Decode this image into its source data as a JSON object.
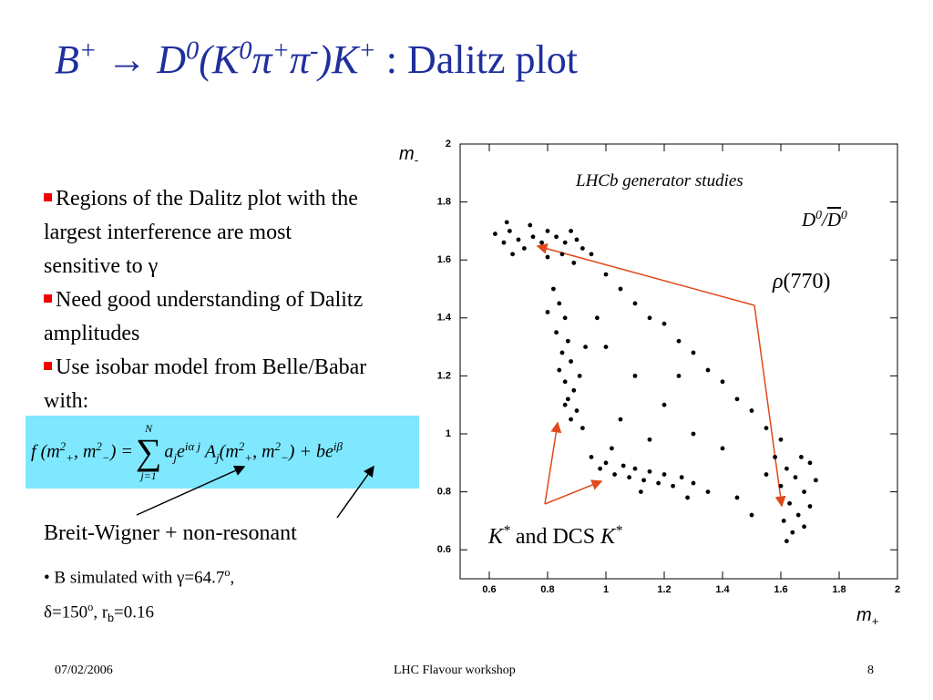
{
  "header": {
    "title": [
      {
        "t": "B"
      },
      {
        "t": "+",
        "v": "sup"
      },
      {
        "t": " → ",
        "s": "b"
      },
      {
        "t": "D"
      },
      {
        "t": "0",
        "v": "sup"
      },
      {
        "t": "(K"
      },
      {
        "t": "0",
        "v": "sup"
      },
      {
        "t": "π"
      },
      {
        "t": "+",
        "v": "sup"
      },
      {
        "t": "π"
      },
      {
        "t": "-",
        "v": "sup"
      },
      {
        "t": ")K"
      },
      {
        "t": "+",
        "v": "sup"
      },
      {
        "t": " : Dalitz plot",
        "s": "rm"
      }
    ]
  },
  "body": {
    "bullets": [
      [
        {
          "t": "Regions of the Dalitz plot with the largest interference are most sensitive to γ"
        }
      ],
      [
        {
          "t": "Need good understanding of Dalitz amplitudes"
        }
      ],
      [
        {
          "t": "Use isobar model from Belle/Babar with:"
        }
      ]
    ],
    "formula": {
      "lhs": [
        {
          "t": "f"
        },
        {
          "t": " (m"
        },
        {
          "t": "2",
          "v": "sup"
        },
        {
          "t": "+",
          "v": "sub"
        },
        {
          "t": ", m"
        },
        {
          "t": "2",
          "v": "sup"
        },
        {
          "t": "−",
          "v": "sub"
        },
        {
          "t": ") = "
        }
      ],
      "sum": {
        "symbol": "∑",
        "upper": "N",
        "lower": "j=1"
      },
      "rhs": [
        {
          "t": "a"
        },
        {
          "t": "j",
          "v": "sub"
        },
        {
          "t": "e"
        },
        {
          "t": "iα j",
          "v": "sup"
        },
        {
          "t": " A"
        },
        {
          "t": "j",
          "v": "sub"
        },
        {
          "t": "(m"
        },
        {
          "t": "2",
          "v": "sup"
        },
        {
          "t": "+",
          "v": "sub"
        },
        {
          "t": ", m"
        },
        {
          "t": "2",
          "v": "sup"
        },
        {
          "t": "−",
          "v": "sub"
        },
        {
          "t": ") + be"
        },
        {
          "t": "iβ",
          "v": "sup"
        }
      ]
    },
    "caption": [
      {
        "t": "Breit-Wigner + non-resonant"
      }
    ],
    "notes": [
      [
        {
          "t": "• B simulated with γ=64.7"
        },
        {
          "t": "o",
          "v": "sup"
        },
        {
          "t": ","
        }
      ],
      [
        {
          "t": "δ=150"
        },
        {
          "t": "o",
          "v": "sup"
        },
        {
          "t": ", r"
        },
        {
          "t": "b",
          "v": "sub",
          "s": "sans"
        },
        {
          "t": "=0.16"
        }
      ]
    ]
  },
  "chart_data": {
    "type": "scatter",
    "color": "#000000",
    "x_label": [
      {
        "t": "m"
      },
      {
        "t": "+",
        "v": "sub"
      }
    ],
    "y_label": [
      {
        "t": "m"
      },
      {
        "t": "-",
        "v": "sub"
      }
    ],
    "annotations": [
      [
        {
          "t": "LHCb generator studies"
        }
      ],
      [
        {
          "t": "D"
        },
        {
          "t": "0",
          "v": "sup"
        },
        {
          "t": "/"
        },
        {
          "t": "D",
          "s": "ov"
        },
        {
          "t": "0",
          "v": "sup"
        }
      ],
      [
        {
          "t": "ρ"
        },
        {
          "t": "(770)",
          "s": "rm"
        }
      ],
      [
        {
          "t": "K"
        },
        {
          "t": "*",
          "v": "sup"
        },
        {
          "t": " and DCS ",
          "s": "rm"
        },
        {
          "t": "K"
        },
        {
          "t": "*",
          "v": "sup"
        }
      ]
    ],
    "xlim": [
      0.5,
      2
    ],
    "ylim": [
      0.5,
      2
    ],
    "xticks": [
      0.6,
      0.8,
      1,
      1.2,
      1.4,
      1.6,
      1.8,
      2
    ],
    "yticks": [
      0.6,
      0.8,
      1,
      1.2,
      1.4,
      1.6,
      1.8,
      2
    ],
    "x": [
      0.62,
      0.65,
      0.67,
      0.7,
      0.72,
      0.68,
      0.75,
      0.78,
      0.8,
      0.83,
      0.86,
      0.88,
      0.9,
      0.92,
      0.85,
      0.8,
      0.95,
      0.74,
      0.66,
      0.89,
      0.82,
      0.84,
      0.86,
      0.83,
      0.87,
      0.85,
      0.88,
      0.84,
      0.86,
      0.89,
      0.87,
      0.9,
      0.88,
      0.92,
      0.91,
      0.93,
      0.8,
      0.86,
      0.95,
      0.98,
      1.0,
      1.03,
      1.06,
      1.08,
      1.1,
      1.13,
      1.15,
      1.18,
      1.2,
      1.23,
      1.26,
      1.3,
      1.02,
      1.12,
      1.35,
      1.28,
      1.58,
      1.62,
      1.65,
      1.6,
      1.68,
      1.63,
      1.66,
      1.7,
      1.61,
      1.64,
      1.68,
      1.72,
      1.67,
      1.55,
      1.7,
      1.62,
      1.0,
      1.05,
      1.1,
      1.15,
      1.2,
      1.25,
      1.3,
      1.35,
      1.4,
      1.45,
      1.5,
      1.55,
      1.6,
      1.0,
      1.1,
      1.2,
      1.3,
      1.4,
      1.05,
      1.15,
      1.45,
      1.5,
      0.97,
      1.25
    ],
    "y": [
      1.69,
      1.66,
      1.7,
      1.67,
      1.64,
      1.62,
      1.68,
      1.66,
      1.7,
      1.68,
      1.66,
      1.7,
      1.67,
      1.64,
      1.62,
      1.61,
      1.62,
      1.72,
      1.73,
      1.59,
      1.5,
      1.45,
      1.4,
      1.35,
      1.32,
      1.28,
      1.25,
      1.22,
      1.18,
      1.15,
      1.12,
      1.08,
      1.05,
      1.02,
      1.2,
      1.3,
      1.42,
      1.1,
      0.92,
      0.88,
      0.9,
      0.86,
      0.89,
      0.85,
      0.88,
      0.84,
      0.87,
      0.83,
      0.86,
      0.82,
      0.85,
      0.83,
      0.95,
      0.8,
      0.8,
      0.78,
      0.92,
      0.88,
      0.85,
      0.82,
      0.8,
      0.76,
      0.72,
      0.75,
      0.7,
      0.66,
      0.68,
      0.84,
      0.92,
      0.86,
      0.9,
      0.63,
      1.55,
      1.5,
      1.45,
      1.4,
      1.38,
      1.32,
      1.28,
      1.22,
      1.18,
      1.12,
      1.08,
      1.02,
      0.98,
      1.3,
      1.2,
      1.1,
      1.0,
      0.95,
      1.05,
      0.98,
      0.78,
      0.72,
      1.4,
      1.2
    ]
  },
  "footer": {
    "date": "07/02/2006",
    "event": "LHC Flavour workshop",
    "page": "8"
  }
}
